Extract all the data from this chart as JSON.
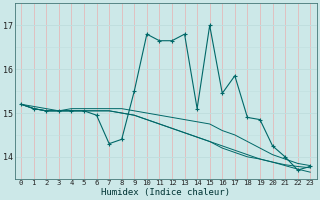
{
  "xlabel": "Humidex (Indice chaleur)",
  "bg_color": "#cce8e8",
  "line_color": "#006868",
  "grid_color_h": "#c0dede",
  "grid_color_v": "#e8b0b0",
  "xlim": [
    -0.5,
    23.5
  ],
  "ylim": [
    13.5,
    17.5
  ],
  "yticks": [
    14,
    15,
    16,
    17
  ],
  "xticks": [
    0,
    1,
    2,
    3,
    4,
    5,
    6,
    7,
    8,
    9,
    10,
    11,
    12,
    13,
    14,
    15,
    16,
    17,
    18,
    19,
    20,
    21,
    22,
    23
  ],
  "line1_y": [
    15.2,
    15.1,
    15.05,
    15.05,
    15.05,
    15.05,
    15.05,
    15.05,
    15.0,
    14.95,
    14.85,
    14.75,
    14.65,
    14.55,
    14.45,
    14.35,
    14.25,
    14.15,
    14.05,
    13.95,
    13.88,
    13.8,
    13.72,
    13.65
  ],
  "line2_y": [
    15.2,
    15.1,
    15.05,
    15.05,
    15.05,
    15.05,
    15.05,
    15.05,
    15.0,
    14.95,
    14.85,
    14.75,
    14.65,
    14.55,
    14.45,
    14.35,
    14.2,
    14.1,
    14.0,
    13.95,
    13.88,
    13.82,
    13.78,
    13.75
  ],
  "line3_y": [
    15.2,
    15.15,
    15.1,
    15.05,
    15.1,
    15.1,
    15.1,
    15.1,
    15.1,
    15.05,
    15.0,
    14.95,
    14.9,
    14.85,
    14.8,
    14.75,
    14.6,
    14.5,
    14.35,
    14.2,
    14.05,
    13.95,
    13.85,
    13.8
  ],
  "curve_x": [
    0,
    1,
    2,
    3,
    4,
    5,
    6,
    7,
    8,
    9,
    10,
    11,
    12,
    13,
    14,
    15,
    16,
    17,
    18,
    19,
    20,
    21,
    22,
    23
  ],
  "curve_y": [
    15.2,
    15.1,
    15.05,
    15.05,
    15.05,
    15.05,
    14.95,
    14.3,
    14.4,
    15.5,
    16.8,
    16.65,
    16.65,
    16.8,
    15.1,
    17.0,
    15.45,
    15.85,
    14.9,
    14.85,
    14.25,
    14.0,
    13.7,
    13.78
  ]
}
